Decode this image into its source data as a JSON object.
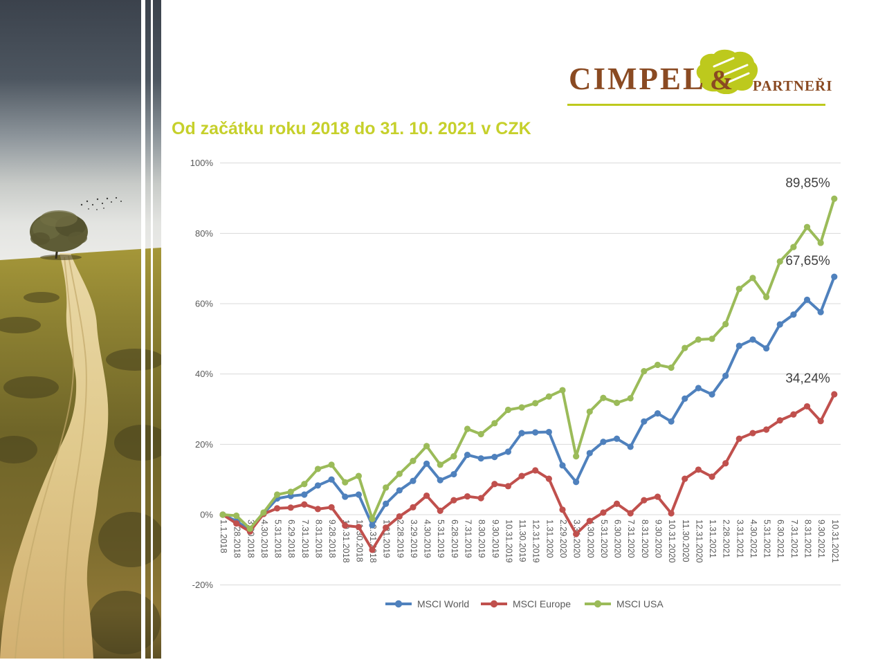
{
  "logo": {
    "name": "CIMPEL",
    "amp": "&",
    "suffix": "PARTNEŘI"
  },
  "title": "Od začátku roku 2018 do 31. 10. 2021 v CZK",
  "colors": {
    "title_green": "#c6d02b",
    "logo_brown": "#8a4a22",
    "logo_green": "#bdc91d",
    "grid": "#d9d9d9",
    "axis_text": "#595959",
    "end_label_text": "#404040"
  },
  "chart_data": {
    "type": "line",
    "title": "",
    "xlabel": "",
    "ylabel": "",
    "ylim": [
      -20,
      100
    ],
    "grid": true,
    "legend_position": "bottom",
    "y_ticks": [
      "100%",
      "80%",
      "60%",
      "40%",
      "20%",
      "0%",
      "-20%"
    ],
    "categories": [
      "1.1.2018",
      "2.28.2018",
      "3.30.2018",
      "4.30.2018",
      "5.31.2018",
      "6.29.2018",
      "7.31.2018",
      "8.31.2018",
      "9.28.2018",
      "10.31.2018",
      "11.30.2018",
      "12.31.2018",
      "1.31.2019",
      "2.28.2019",
      "3.29.2019",
      "4.30.2019",
      "5.31.2019",
      "6.28.2019",
      "7.31.2019",
      "8.30.2019",
      "9.30.2019",
      "10.31.2019",
      "11.30.2019",
      "12.31.2019",
      "1.31.2020",
      "2.29.2020",
      "3.31.2020",
      "4.30.2020",
      "5.31.2020",
      "6.30.2020",
      "7.31.2020",
      "8.31.2020",
      "9.30.2020",
      "10.31.2020",
      "11.30.2020",
      "12.31.2020",
      "1.31.2021",
      "2.28.2021",
      "3.31.2021",
      "4.30.2021",
      "5.31.2021",
      "6.30.2021",
      "7.31.2021",
      "8.31.2021",
      "9.30.2021",
      "10.31.2021"
    ],
    "series": [
      {
        "name": "MSCI World",
        "color": "#4F81BD",
        "end_label": "67,65%",
        "values": [
          0,
          -1.8,
          -4.5,
          0.3,
          4.6,
          5.3,
          5.7,
          8.3,
          10,
          5.1,
          5.7,
          -3,
          3.1,
          6.9,
          9.6,
          14.5,
          9.8,
          11.5,
          17,
          16,
          16.4,
          17.9,
          23.2,
          23.4,
          23.5,
          14,
          9.3,
          17.5,
          20.7,
          21.6,
          19.3,
          26.5,
          28.8,
          26.5,
          33,
          36,
          34.2,
          39.5,
          48,
          49.8,
          47.3,
          54.1,
          56.9,
          61.1,
          57.6,
          67.65
        ]
      },
      {
        "name": "MSCI Europe",
        "color": "#C0504D",
        "end_label": "34,24%",
        "values": [
          0,
          -2.5,
          -4.8,
          0.2,
          1.8,
          2,
          2.9,
          1.6,
          2.1,
          -3.1,
          -3.5,
          -10,
          -3.7,
          -0.5,
          2.1,
          5.4,
          1.1,
          4.1,
          5.2,
          4.7,
          8.7,
          8.1,
          11,
          12.6,
          10.2,
          1.4,
          -5.5,
          -1.8,
          0.6,
          3.1,
          0.4,
          4.1,
          5.1,
          0.4,
          10.2,
          12.8,
          10.8,
          14.6,
          21.6,
          23.2,
          24.2,
          26.8,
          28.5,
          30.8,
          26.6,
          34.24
        ]
      },
      {
        "name": "MSCI USA",
        "color": "#9BBB59",
        "end_label": "89,85%",
        "values": [
          0,
          -0.3,
          -4,
          0.6,
          5.7,
          6.5,
          8.7,
          13,
          14.2,
          9.2,
          11,
          -1.2,
          7.7,
          11.6,
          15.3,
          19.5,
          14.2,
          16.6,
          24.4,
          22.9,
          26,
          29.8,
          30.5,
          31.7,
          33.6,
          35.4,
          16.6,
          29.3,
          33.2,
          31.8,
          33.1,
          40.8,
          42.6,
          41.8,
          47.4,
          49.8,
          50,
          54.2,
          64.2,
          67.3,
          61.9,
          72,
          76.1,
          81.8,
          77.3,
          89.85
        ]
      }
    ]
  }
}
